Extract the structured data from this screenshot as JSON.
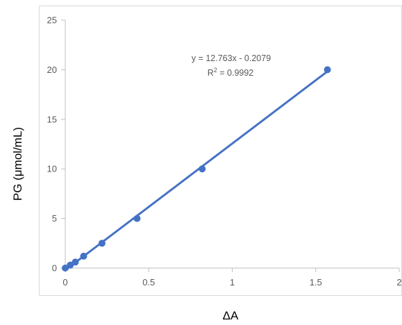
{
  "chart_data": {
    "type": "scatter",
    "title": "",
    "xlabel": "ΔA",
    "ylabel": "PG (μmol/mL)",
    "xlim": [
      0,
      2
    ],
    "ylim": [
      0,
      25
    ],
    "x_ticks": [
      0,
      0.5,
      1,
      1.5,
      2
    ],
    "x_tick_labels": [
      "0",
      "0.5",
      "1",
      "1.5",
      "2"
    ],
    "y_ticks": [
      0,
      5,
      10,
      15,
      20,
      25
    ],
    "y_tick_labels": [
      "0",
      "5",
      "10",
      "15",
      "20",
      "25"
    ],
    "grid": {
      "horizontal": false,
      "vertical": false
    },
    "legend": "none",
    "series": [
      {
        "x": [
          0,
          0.03,
          0.06,
          0.11,
          0.22,
          0.43,
          0.82,
          1.57
        ],
        "y": [
          0,
          0.3,
          0.6,
          1.2,
          2.5,
          5,
          10,
          20
        ],
        "color": "#4472c4"
      }
    ],
    "trendline": {
      "slope": 12.763,
      "intercept": -0.2079,
      "x_range": [
        0,
        1.57
      ],
      "color": "#4472c4"
    },
    "annotation": {
      "equation": "y = 12.763x - 0.2079",
      "r2_prefix": "R",
      "r2_sup": "2",
      "r2_value": " = 0.9992"
    }
  }
}
